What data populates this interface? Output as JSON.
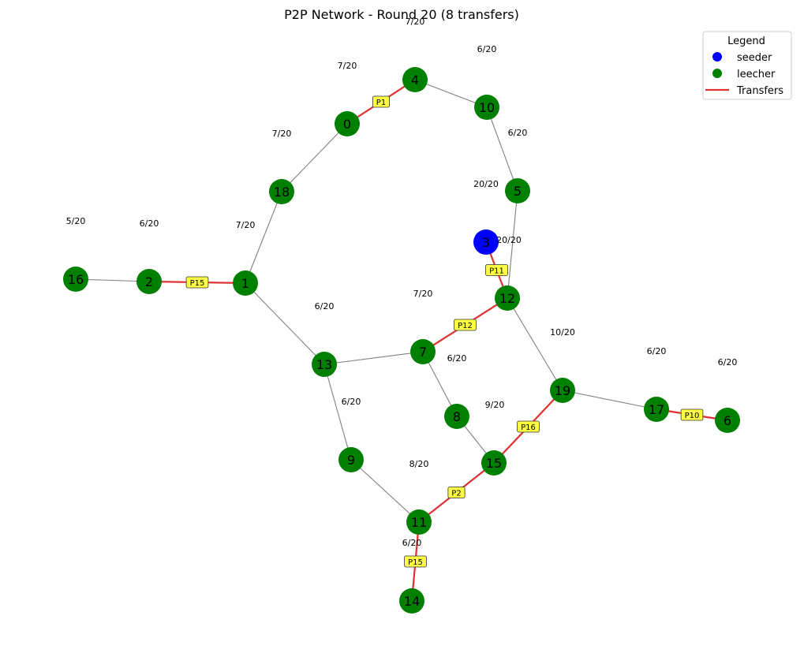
{
  "title": "P2P Network - Round 20 (8 transfers)",
  "colors": {
    "seeder": "#0000ff",
    "leecher": "#008000",
    "edge": "#808080",
    "transfer": "#e03030",
    "tag_bg": "#ffff44"
  },
  "legend": {
    "title": "Legend",
    "items": [
      {
        "label": "seeder",
        "kind": "dot",
        "color_key": "seeder"
      },
      {
        "label": "leecher",
        "kind": "dot",
        "color_key": "leecher"
      },
      {
        "label": "Transfers",
        "kind": "line",
        "color_key": "transfer"
      }
    ]
  },
  "nodes": [
    {
      "id": "0",
      "role": "leecher",
      "progress": "7/20"
    },
    {
      "id": "1",
      "role": "leecher",
      "progress": "7/20"
    },
    {
      "id": "2",
      "role": "leecher",
      "progress": "6/20"
    },
    {
      "id": "3",
      "role": "seeder",
      "progress": "20/20"
    },
    {
      "id": "4",
      "role": "leecher",
      "progress": "7/20"
    },
    {
      "id": "5",
      "role": "leecher",
      "progress": "20/20"
    },
    {
      "id": "6",
      "role": "leecher",
      "progress": "6/20"
    },
    {
      "id": "7",
      "role": "leecher",
      "progress": "7/20"
    },
    {
      "id": "8",
      "role": "leecher",
      "progress": "6/20"
    },
    {
      "id": "9",
      "role": "leecher",
      "progress": "6/20"
    },
    {
      "id": "10",
      "role": "leecher",
      "progress": "6/20"
    },
    {
      "id": "11",
      "role": "leecher",
      "progress": "8/20"
    },
    {
      "id": "12",
      "role": "leecher",
      "progress": "10/20"
    },
    {
      "id": "13",
      "role": "leecher",
      "progress": "6/20"
    },
    {
      "id": "14",
      "role": "leecher",
      "progress": "6/20"
    },
    {
      "id": "15",
      "role": "leecher",
      "progress": "9/20"
    },
    {
      "id": "16",
      "role": "leecher",
      "progress": "5/20"
    },
    {
      "id": "17",
      "role": "leecher",
      "progress": "6/20"
    },
    {
      "id": "18",
      "role": "leecher",
      "progress": "7/20"
    },
    {
      "id": "19",
      "role": "leecher",
      "progress": "6/20"
    }
  ],
  "edges": [
    [
      "0",
      "18"
    ],
    [
      "4",
      "10"
    ],
    [
      "10",
      "5"
    ],
    [
      "5",
      "12"
    ],
    [
      "18",
      "1"
    ],
    [
      "16",
      "2"
    ],
    [
      "1",
      "13"
    ],
    [
      "13",
      "7"
    ],
    [
      "13",
      "9"
    ],
    [
      "7",
      "8"
    ],
    [
      "8",
      "15"
    ],
    [
      "9",
      "11"
    ],
    [
      "12",
      "19"
    ],
    [
      "19",
      "17"
    ]
  ],
  "transfers": [
    {
      "from": "0",
      "to": "4",
      "piece": "P1"
    },
    {
      "from": "1",
      "to": "2",
      "piece": "P15"
    },
    {
      "from": "3",
      "to": "12",
      "piece": "P11"
    },
    {
      "from": "12",
      "to": "7",
      "piece": "P12"
    },
    {
      "from": "19",
      "to": "15",
      "piece": "P16"
    },
    {
      "from": "17",
      "to": "6",
      "piece": "P10"
    },
    {
      "from": "15",
      "to": "11",
      "piece": "P2"
    },
    {
      "from": "11",
      "to": "14",
      "piece": "P15"
    }
  ]
}
